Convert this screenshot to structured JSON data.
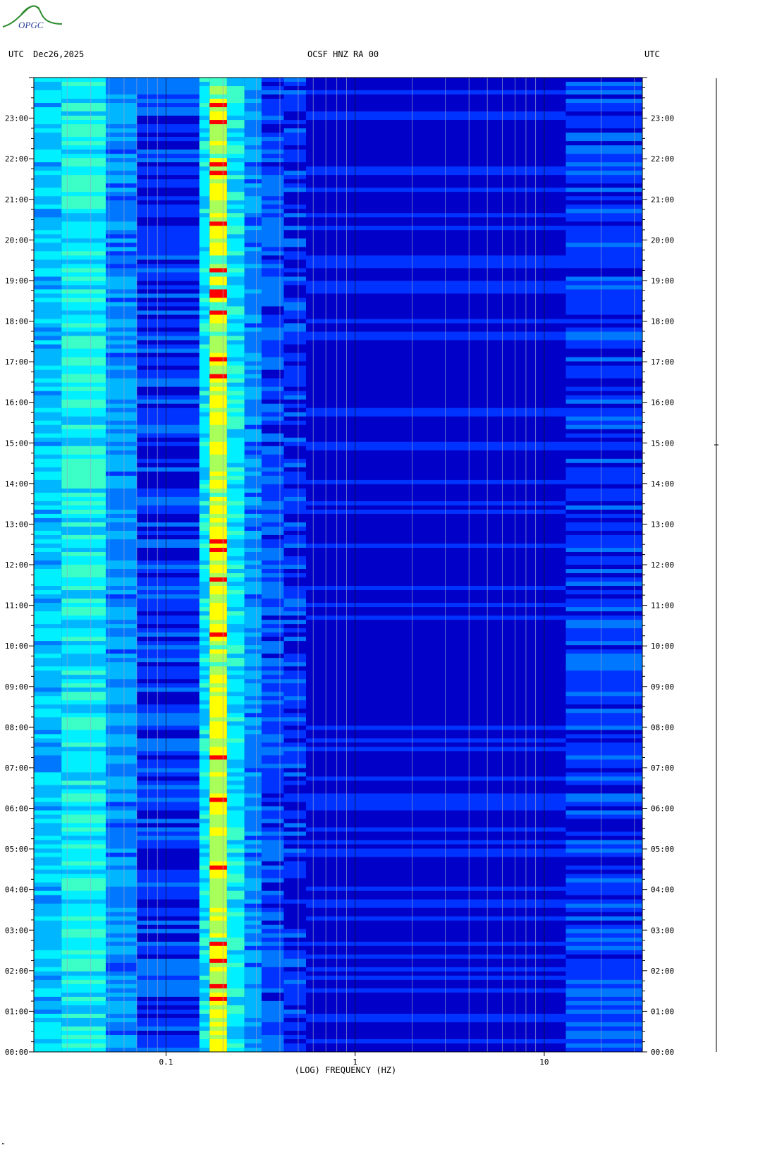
{
  "logo": {
    "text": "OPGC",
    "color": "#3a8f3a"
  },
  "header": {
    "left_utc": "UTC",
    "date": "Dec26,2025",
    "station": "OCSF HNZ RA 00",
    "right_utc": "UTC"
  },
  "footer_mark": "”",
  "chart_data": {
    "type": "heatmap",
    "title": "OCSF HNZ RA 00",
    "xlabel": "(LOG) FREQUENCY (HZ)",
    "ylabel": "UTC",
    "x_scale": "log",
    "xlim": [
      0.02,
      33
    ],
    "ylim": [
      0,
      24
    ],
    "x_ticks": [
      {
        "value": 0.1,
        "label": "0.1"
      },
      {
        "value": 1,
        "label": "1"
      },
      {
        "value": 10,
        "label": "10"
      }
    ],
    "y_ticks": [
      {
        "value": 0,
        "label": "00:00"
      },
      {
        "value": 1,
        "label": "01:00"
      },
      {
        "value": 2,
        "label": "02:00"
      },
      {
        "value": 3,
        "label": "03:00"
      },
      {
        "value": 4,
        "label": "04:00"
      },
      {
        "value": 5,
        "label": "05:00"
      },
      {
        "value": 6,
        "label": "06:00"
      },
      {
        "value": 7,
        "label": "07:00"
      },
      {
        "value": 8,
        "label": "08:00"
      },
      {
        "value": 9,
        "label": "09:00"
      },
      {
        "value": 10,
        "label": "10:00"
      },
      {
        "value": 11,
        "label": "11:00"
      },
      {
        "value": 12,
        "label": "12:00"
      },
      {
        "value": 13,
        "label": "13:00"
      },
      {
        "value": 14,
        "label": "14:00"
      },
      {
        "value": 15,
        "label": "15:00"
      },
      {
        "value": 16,
        "label": "16:00"
      },
      {
        "value": 17,
        "label": "17:00"
      },
      {
        "value": 18,
        "label": "18:00"
      },
      {
        "value": 19,
        "label": "19:00"
      },
      {
        "value": 20,
        "label": "20:00"
      },
      {
        "value": 21,
        "label": "21:00"
      },
      {
        "value": 22,
        "label": "22:00"
      },
      {
        "value": 23,
        "label": "23:00"
      }
    ],
    "spectral_bands": [
      {
        "f_min": 0.02,
        "f_max": 0.028,
        "level": 0.3
      },
      {
        "f_min": 0.028,
        "f_max": 0.048,
        "level": 0.4
      },
      {
        "f_min": 0.048,
        "f_max": 0.07,
        "level": 0.22
      },
      {
        "f_min": 0.07,
        "f_max": 0.15,
        "level": 0.08
      },
      {
        "f_min": 0.15,
        "f_max": 0.17,
        "level": 0.36
      },
      {
        "f_min": 0.17,
        "f_max": 0.21,
        "level": 0.62
      },
      {
        "f_min": 0.21,
        "f_max": 0.26,
        "level": 0.38
      },
      {
        "f_min": 0.26,
        "f_max": 0.32,
        "level": 0.22
      },
      {
        "f_min": 0.32,
        "f_max": 0.42,
        "level": 0.12
      },
      {
        "f_min": 0.42,
        "f_max": 0.55,
        "level": 0.05
      },
      {
        "f_min": 0.55,
        "f_max": 13,
        "level": 0.0
      },
      {
        "f_min": 13,
        "f_max": 33,
        "level": 0.08
      }
    ],
    "colormap": [
      "#00007a",
      "#0000c8",
      "#0033ff",
      "#0077ff",
      "#00b7ff",
      "#00f0ff",
      "#3cffc8",
      "#a8ff5a",
      "#ffff00",
      "#ff8800",
      "#ff0000"
    ]
  }
}
